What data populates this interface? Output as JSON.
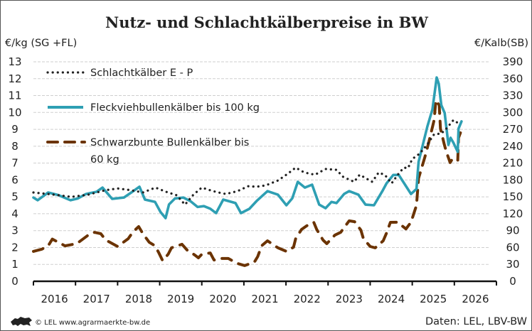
{
  "chart_data": {
    "type": "line",
    "title": "Nutz- und Schlachtkälberpreise in BW",
    "ylabel_left": "€/kg (SG +FL)",
    "ylabel_right": "€/Kalb(SB)",
    "ylim": [
      0,
      13
    ],
    "ylim_right": [
      0,
      390
    ],
    "yticks": [
      "0",
      "1",
      "2",
      "3",
      "4",
      "5",
      "6",
      "7",
      "8",
      "9",
      "10",
      "11",
      "12",
      "13"
    ],
    "yticks_right": [
      "0",
      "30",
      "60",
      "90",
      "120",
      "150",
      "180",
      "210",
      "240",
      "270",
      "300",
      "330",
      "360",
      "390"
    ],
    "xlim": [
      2016,
      2027
    ],
    "xticks": [
      "2016",
      "2017",
      "2018",
      "2019",
      "2020",
      "2021",
      "2022",
      "2023",
      "2024",
      "2025",
      "2026"
    ],
    "grid": true,
    "legend_position": "top-left",
    "colors": {
      "schlacht": "#222222",
      "fleckvieh": "#2e9fb3",
      "schwarzbunte": "#6b3300"
    },
    "series": [
      {
        "name": "Schlachtkälber E - P",
        "style": "dotted",
        "axis": "left",
        "points": [
          [
            2016.0,
            5.26
          ],
          [
            2016.5,
            5.13
          ],
          [
            2016.9,
            5.0
          ],
          [
            2017.3,
            5.13
          ],
          [
            2017.7,
            5.39
          ],
          [
            2018.0,
            5.5
          ],
          [
            2018.3,
            5.4
          ],
          [
            2018.6,
            5.26
          ],
          [
            2018.9,
            5.55
          ],
          [
            2019.15,
            5.3
          ],
          [
            2019.4,
            5.1
          ],
          [
            2019.6,
            4.54
          ],
          [
            2019.8,
            5.13
          ],
          [
            2020.0,
            5.55
          ],
          [
            2020.25,
            5.35
          ],
          [
            2020.4,
            5.26
          ],
          [
            2020.57,
            5.17
          ],
          [
            2020.85,
            5.34
          ],
          [
            2021.1,
            5.63
          ],
          [
            2021.3,
            5.6
          ],
          [
            2021.52,
            5.68
          ],
          [
            2021.81,
            5.97
          ],
          [
            2022.03,
            6.35
          ],
          [
            2022.23,
            6.73
          ],
          [
            2022.44,
            6.44
          ],
          [
            2022.69,
            6.31
          ],
          [
            2022.94,
            6.65
          ],
          [
            2023.2,
            6.6
          ],
          [
            2023.36,
            6.18
          ],
          [
            2023.62,
            5.89
          ],
          [
            2023.75,
            6.31
          ],
          [
            2024.05,
            5.89
          ],
          [
            2024.2,
            6.44
          ],
          [
            2024.35,
            6.3
          ],
          [
            2024.51,
            5.8
          ],
          [
            2024.68,
            6.39
          ],
          [
            2024.8,
            6.73
          ],
          [
            2024.9,
            6.7
          ],
          [
            2025.0,
            7.24
          ],
          [
            2025.18,
            7.57
          ],
          [
            2025.35,
            8.08
          ],
          [
            2025.52,
            8.71
          ],
          [
            2025.69,
            8.75
          ],
          [
            2025.81,
            9.04
          ],
          [
            2025.98,
            9.55
          ],
          [
            2026.08,
            9.38
          ]
        ]
      },
      {
        "name": "Fleckviehbullenkälber bis 100 kg",
        "style": "solid",
        "axis": "left",
        "points": [
          [
            2016.0,
            4.96
          ],
          [
            2016.1,
            4.8
          ],
          [
            2016.35,
            5.26
          ],
          [
            2016.6,
            5.1
          ],
          [
            2016.88,
            4.8
          ],
          [
            2017.05,
            4.9
          ],
          [
            2017.25,
            5.17
          ],
          [
            2017.5,
            5.3
          ],
          [
            2017.64,
            5.55
          ],
          [
            2017.87,
            4.88
          ],
          [
            2018.15,
            4.96
          ],
          [
            2018.35,
            5.3
          ],
          [
            2018.52,
            5.6
          ],
          [
            2018.65,
            4.84
          ],
          [
            2018.89,
            4.7
          ],
          [
            2019.02,
            4.1
          ],
          [
            2019.14,
            3.74
          ],
          [
            2019.22,
            4.55
          ],
          [
            2019.36,
            4.9
          ],
          [
            2019.56,
            4.96
          ],
          [
            2019.73,
            4.75
          ],
          [
            2019.9,
            4.4
          ],
          [
            2020.05,
            4.45
          ],
          [
            2020.2,
            4.3
          ],
          [
            2020.34,
            4.04
          ],
          [
            2020.51,
            4.84
          ],
          [
            2020.8,
            4.63
          ],
          [
            2020.93,
            4.04
          ],
          [
            2021.13,
            4.29
          ],
          [
            2021.3,
            4.75
          ],
          [
            2021.56,
            5.34
          ],
          [
            2021.81,
            5.13
          ],
          [
            2022.01,
            4.5
          ],
          [
            2022.15,
            4.92
          ],
          [
            2022.28,
            5.89
          ],
          [
            2022.45,
            5.55
          ],
          [
            2022.62,
            5.72
          ],
          [
            2022.79,
            4.54
          ],
          [
            2022.94,
            4.33
          ],
          [
            2023.08,
            4.7
          ],
          [
            2023.2,
            4.63
          ],
          [
            2023.38,
            5.17
          ],
          [
            2023.5,
            5.34
          ],
          [
            2023.72,
            5.13
          ],
          [
            2023.89,
            4.54
          ],
          [
            2024.09,
            4.5
          ],
          [
            2024.29,
            5.34
          ],
          [
            2024.39,
            5.8
          ],
          [
            2024.55,
            6.3
          ],
          [
            2024.68,
            6.3
          ],
          [
            2024.97,
            5.17
          ],
          [
            2025.1,
            5.47
          ],
          [
            2025.15,
            7.07
          ],
          [
            2025.36,
            9.17
          ],
          [
            2025.48,
            10.18
          ],
          [
            2025.58,
            12.07
          ],
          [
            2025.63,
            11.7
          ],
          [
            2025.69,
            10.43
          ],
          [
            2025.77,
            9.97
          ],
          [
            2025.86,
            8.08
          ],
          [
            2025.91,
            8.5
          ],
          [
            2025.98,
            8.2
          ],
          [
            2026.08,
            7.66
          ],
          [
            2026.1,
            9.04
          ],
          [
            2026.17,
            9.47
          ]
        ]
      },
      {
        "name": "Schwarzbunte Bullenkälber bis 60 kg",
        "style": "dashed",
        "axis": "left",
        "points": [
          [
            2016.0,
            1.77
          ],
          [
            2016.2,
            1.9
          ],
          [
            2016.35,
            2.1
          ],
          [
            2016.45,
            2.5
          ],
          [
            2016.75,
            2.1
          ],
          [
            2017.03,
            2.23
          ],
          [
            2017.3,
            2.73
          ],
          [
            2017.45,
            2.9
          ],
          [
            2017.6,
            2.82
          ],
          [
            2017.72,
            2.44
          ],
          [
            2018.0,
            2.06
          ],
          [
            2018.25,
            2.52
          ],
          [
            2018.37,
            2.94
          ],
          [
            2018.5,
            3.24
          ],
          [
            2018.6,
            2.82
          ],
          [
            2018.75,
            2.31
          ],
          [
            2018.89,
            2.1
          ],
          [
            2018.98,
            1.68
          ],
          [
            2019.07,
            1.22
          ],
          [
            2019.2,
            1.6
          ],
          [
            2019.28,
            1.98
          ],
          [
            2019.53,
            2.19
          ],
          [
            2019.65,
            1.85
          ],
          [
            2019.83,
            1.56
          ],
          [
            2019.92,
            1.39
          ],
          [
            2020.0,
            1.6
          ],
          [
            2020.2,
            1.68
          ],
          [
            2020.29,
            1.26
          ],
          [
            2020.46,
            1.35
          ],
          [
            2020.63,
            1.35
          ],
          [
            2020.85,
            1.05
          ],
          [
            2021.02,
            0.93
          ],
          [
            2021.25,
            1.14
          ],
          [
            2021.33,
            1.47
          ],
          [
            2021.42,
            2.1
          ],
          [
            2021.56,
            2.4
          ],
          [
            2021.81,
            1.98
          ],
          [
            2022.01,
            1.77
          ],
          [
            2022.18,
            2.02
          ],
          [
            2022.23,
            2.52
          ],
          [
            2022.37,
            3.07
          ],
          [
            2022.49,
            3.28
          ],
          [
            2022.66,
            3.49
          ],
          [
            2022.73,
            3.07
          ],
          [
            2022.88,
            2.44
          ],
          [
            2022.97,
            2.23
          ],
          [
            2023.16,
            2.73
          ],
          [
            2023.3,
            2.9
          ],
          [
            2023.5,
            3.58
          ],
          [
            2023.63,
            3.53
          ],
          [
            2023.78,
            3.03
          ],
          [
            2023.84,
            2.52
          ],
          [
            2024.0,
            2.06
          ],
          [
            2024.12,
            1.98
          ],
          [
            2024.31,
            2.4
          ],
          [
            2024.39,
            2.86
          ],
          [
            2024.48,
            3.49
          ],
          [
            2024.65,
            3.5
          ],
          [
            2024.85,
            3.1
          ],
          [
            2024.97,
            3.5
          ],
          [
            2025.1,
            4.5
          ],
          [
            2025.15,
            6.1
          ],
          [
            2025.3,
            7.36
          ],
          [
            2025.39,
            8.2
          ],
          [
            2025.52,
            9.55
          ],
          [
            2025.56,
            10.73
          ],
          [
            2025.64,
            10.43
          ],
          [
            2025.67,
            9.04
          ],
          [
            2025.76,
            8.12
          ],
          [
            2025.81,
            7.66
          ],
          [
            2025.9,
            7.03
          ],
          [
            2025.95,
            7.24
          ],
          [
            2026.0,
            7.15
          ],
          [
            2026.08,
            7.15
          ],
          [
            2026.1,
            8.5
          ],
          [
            2026.15,
            8.83
          ]
        ]
      }
    ],
    "legend_lines": [
      "Schlachtkälber E - P",
      "Fleckviehbullenkälber bis 100 kg",
      "Schwarzbunte Bullenkälber bis",
      "60 kg"
    ]
  },
  "footer": {
    "copyright": "© LEL www.agrarmaerkte-bw.de",
    "source": "Daten: LEL, LBV-BW",
    "logo_icon": "lion-icon"
  }
}
